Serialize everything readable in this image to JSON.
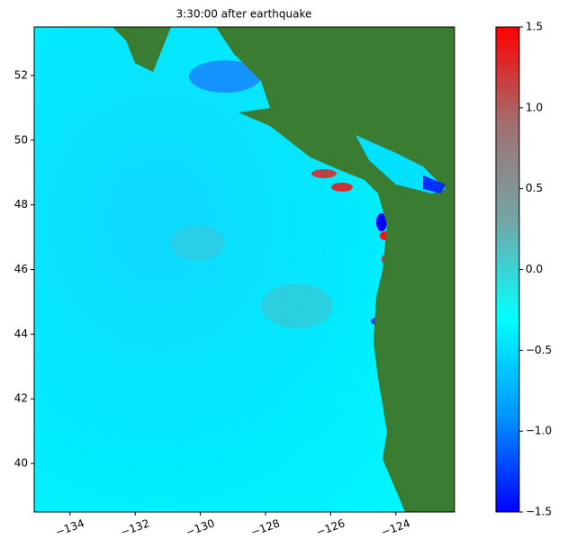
{
  "chart_data": {
    "type": "heatmap",
    "title": "3:30:00 after earthquake",
    "xlim": [
      -135.1,
      -122.2
    ],
    "xticks": [
      {
        "value": -134,
        "label": "−134"
      },
      {
        "value": -132,
        "label": "−132"
      },
      {
        "value": -130,
        "label": "−130"
      },
      {
        "value": -128,
        "label": "−128"
      },
      {
        "value": -126,
        "label": "−126"
      },
      {
        "value": -124,
        "label": "−124"
      }
    ],
    "ylim": [
      38.5,
      53.5
    ],
    "yticks": [
      40,
      42,
      44,
      46,
      48,
      50,
      52
    ],
    "clim": [
      -1.5,
      1.5
    ],
    "cticks": [
      {
        "value": -1.5,
        "label": "−1.5"
      },
      {
        "value": -1.0,
        "label": "−1.0"
      },
      {
        "value": -0.5,
        "label": "−0.5"
      },
      {
        "value": 0.0,
        "label": "0.0"
      },
      0.5,
      {
        "value": 1.0,
        "label": "1.0"
      },
      1.5
    ],
    "colormap": [
      "#0000ff",
      "#0096ff",
      "#00ffff",
      "#74a6a6",
      "#a07070",
      "#ff0000"
    ]
  }
}
